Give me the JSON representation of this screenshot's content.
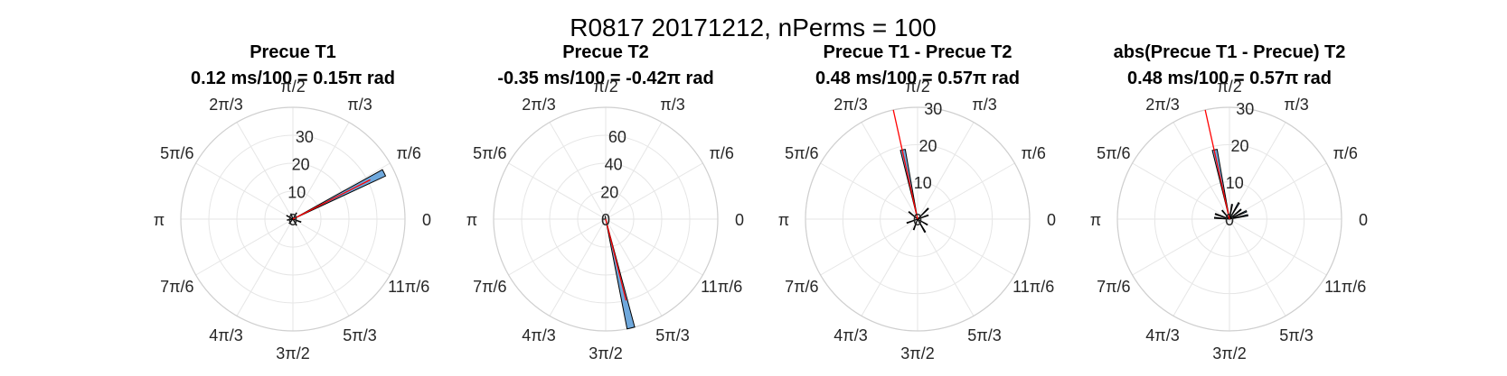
{
  "figure": {
    "suptitle": "R0817 20171212, nPerms = 100"
  },
  "chart_data": [
    {
      "type": "polar-histogram",
      "title_line1": "Precue T1",
      "title_line2": "0.12 ms/100 = 0.15π rad",
      "theta_labels": [
        "0",
        "π/6",
        "π/3",
        "π/2",
        "2π/3",
        "5π/6",
        "π",
        "7π/6",
        "4π/3",
        "3π/2",
        "5π/3",
        "11π/6"
      ],
      "rmax": 40,
      "r_ticks": [
        10,
        20,
        30
      ],
      "bar_width_deg": 4,
      "bars": [
        {
          "theta_deg": 27,
          "value": 36.5
        },
        {
          "theta_deg": 60,
          "value": 2.5
        },
        {
          "theta_deg": 110,
          "value": 2
        },
        {
          "theta_deg": 150,
          "value": 2.5
        },
        {
          "theta_deg": 190,
          "value": 2
        },
        {
          "theta_deg": 230,
          "value": 2
        },
        {
          "theta_deg": 300,
          "value": 2.5
        },
        {
          "theta_deg": 340,
          "value": 3
        }
      ],
      "mean_line": {
        "theta_deg": 27,
        "value": 31
      }
    },
    {
      "type": "polar-histogram",
      "title_line1": "Precue T2",
      "title_line2": "-0.35 ms/100 = -0.42π rad",
      "theta_labels": [
        "0",
        "π/6",
        "π/3",
        "π/2",
        "2π/3",
        "5π/6",
        "π",
        "7π/6",
        "4π/3",
        "3π/2",
        "5π/3",
        "11π/6"
      ],
      "rmax": 80,
      "r_ticks": [
        20,
        40,
        60
      ],
      "bar_width_deg": 4,
      "bars": [
        {
          "theta_deg": 283,
          "value": 80
        },
        {
          "theta_deg": 100,
          "value": 2
        },
        {
          "theta_deg": 180,
          "value": 2
        }
      ],
      "mean_line": {
        "theta_deg": 284,
        "value": 60
      }
    },
    {
      "type": "polar-histogram",
      "title_line1": "Precue T1 - Precue T2",
      "title_line2": "0.48 ms/100 = 0.57π rad",
      "theta_labels": [
        "0",
        "π/6",
        "π/3",
        "π/2",
        "2π/3",
        "5π/6",
        "π",
        "7π/6",
        "4π/3",
        "3π/2",
        "5π/3",
        "11π/6"
      ],
      "rmax": 30,
      "r_ticks": [
        10,
        20,
        30
      ],
      "bar_width_deg": 4,
      "bars": [
        {
          "theta_deg": 102,
          "value": 19
        },
        {
          "theta_deg": 20,
          "value": 3
        },
        {
          "theta_deg": 45,
          "value": 4
        },
        {
          "theta_deg": 140,
          "value": 3
        },
        {
          "theta_deg": 200,
          "value": 3
        },
        {
          "theta_deg": 250,
          "value": 3
        },
        {
          "theta_deg": 300,
          "value": 4
        },
        {
          "theta_deg": 330,
          "value": 3
        }
      ],
      "mean_line": {
        "theta_deg": 102.5,
        "value": 30
      }
    },
    {
      "type": "polar-histogram",
      "title_line1": "abs(Precue T1 - Precue) T2",
      "title_line2": "0.48 ms/100 = 0.57π rad",
      "theta_labels": [
        "0",
        "π/6",
        "π/3",
        "π/2",
        "2π/3",
        "5π/6",
        "π",
        "7π/6",
        "4π/3",
        "3π/2",
        "5π/3",
        "11π/6"
      ],
      "rmax": 30,
      "r_ticks": [
        10,
        20,
        30
      ],
      "bar_width_deg": 4,
      "bars": [
        {
          "theta_deg": 102,
          "value": 19
        },
        {
          "theta_deg": 12,
          "value": 5
        },
        {
          "theta_deg": 25,
          "value": 5
        },
        {
          "theta_deg": 40,
          "value": 4
        },
        {
          "theta_deg": 60,
          "value": 5
        },
        {
          "theta_deg": 80,
          "value": 4
        },
        {
          "theta_deg": 130,
          "value": 3
        },
        {
          "theta_deg": 160,
          "value": 4
        },
        {
          "theta_deg": 175,
          "value": 4
        }
      ],
      "mean_line": {
        "theta_deg": 102.5,
        "value": 30
      }
    }
  ],
  "colors": {
    "bar_fill": "#6fa8dc",
    "bar_edge": "#000000",
    "grid": "#e6e6e6",
    "outer_ring": "#cfcfcf",
    "mean_line": "#ff0000",
    "text": "#262626"
  }
}
